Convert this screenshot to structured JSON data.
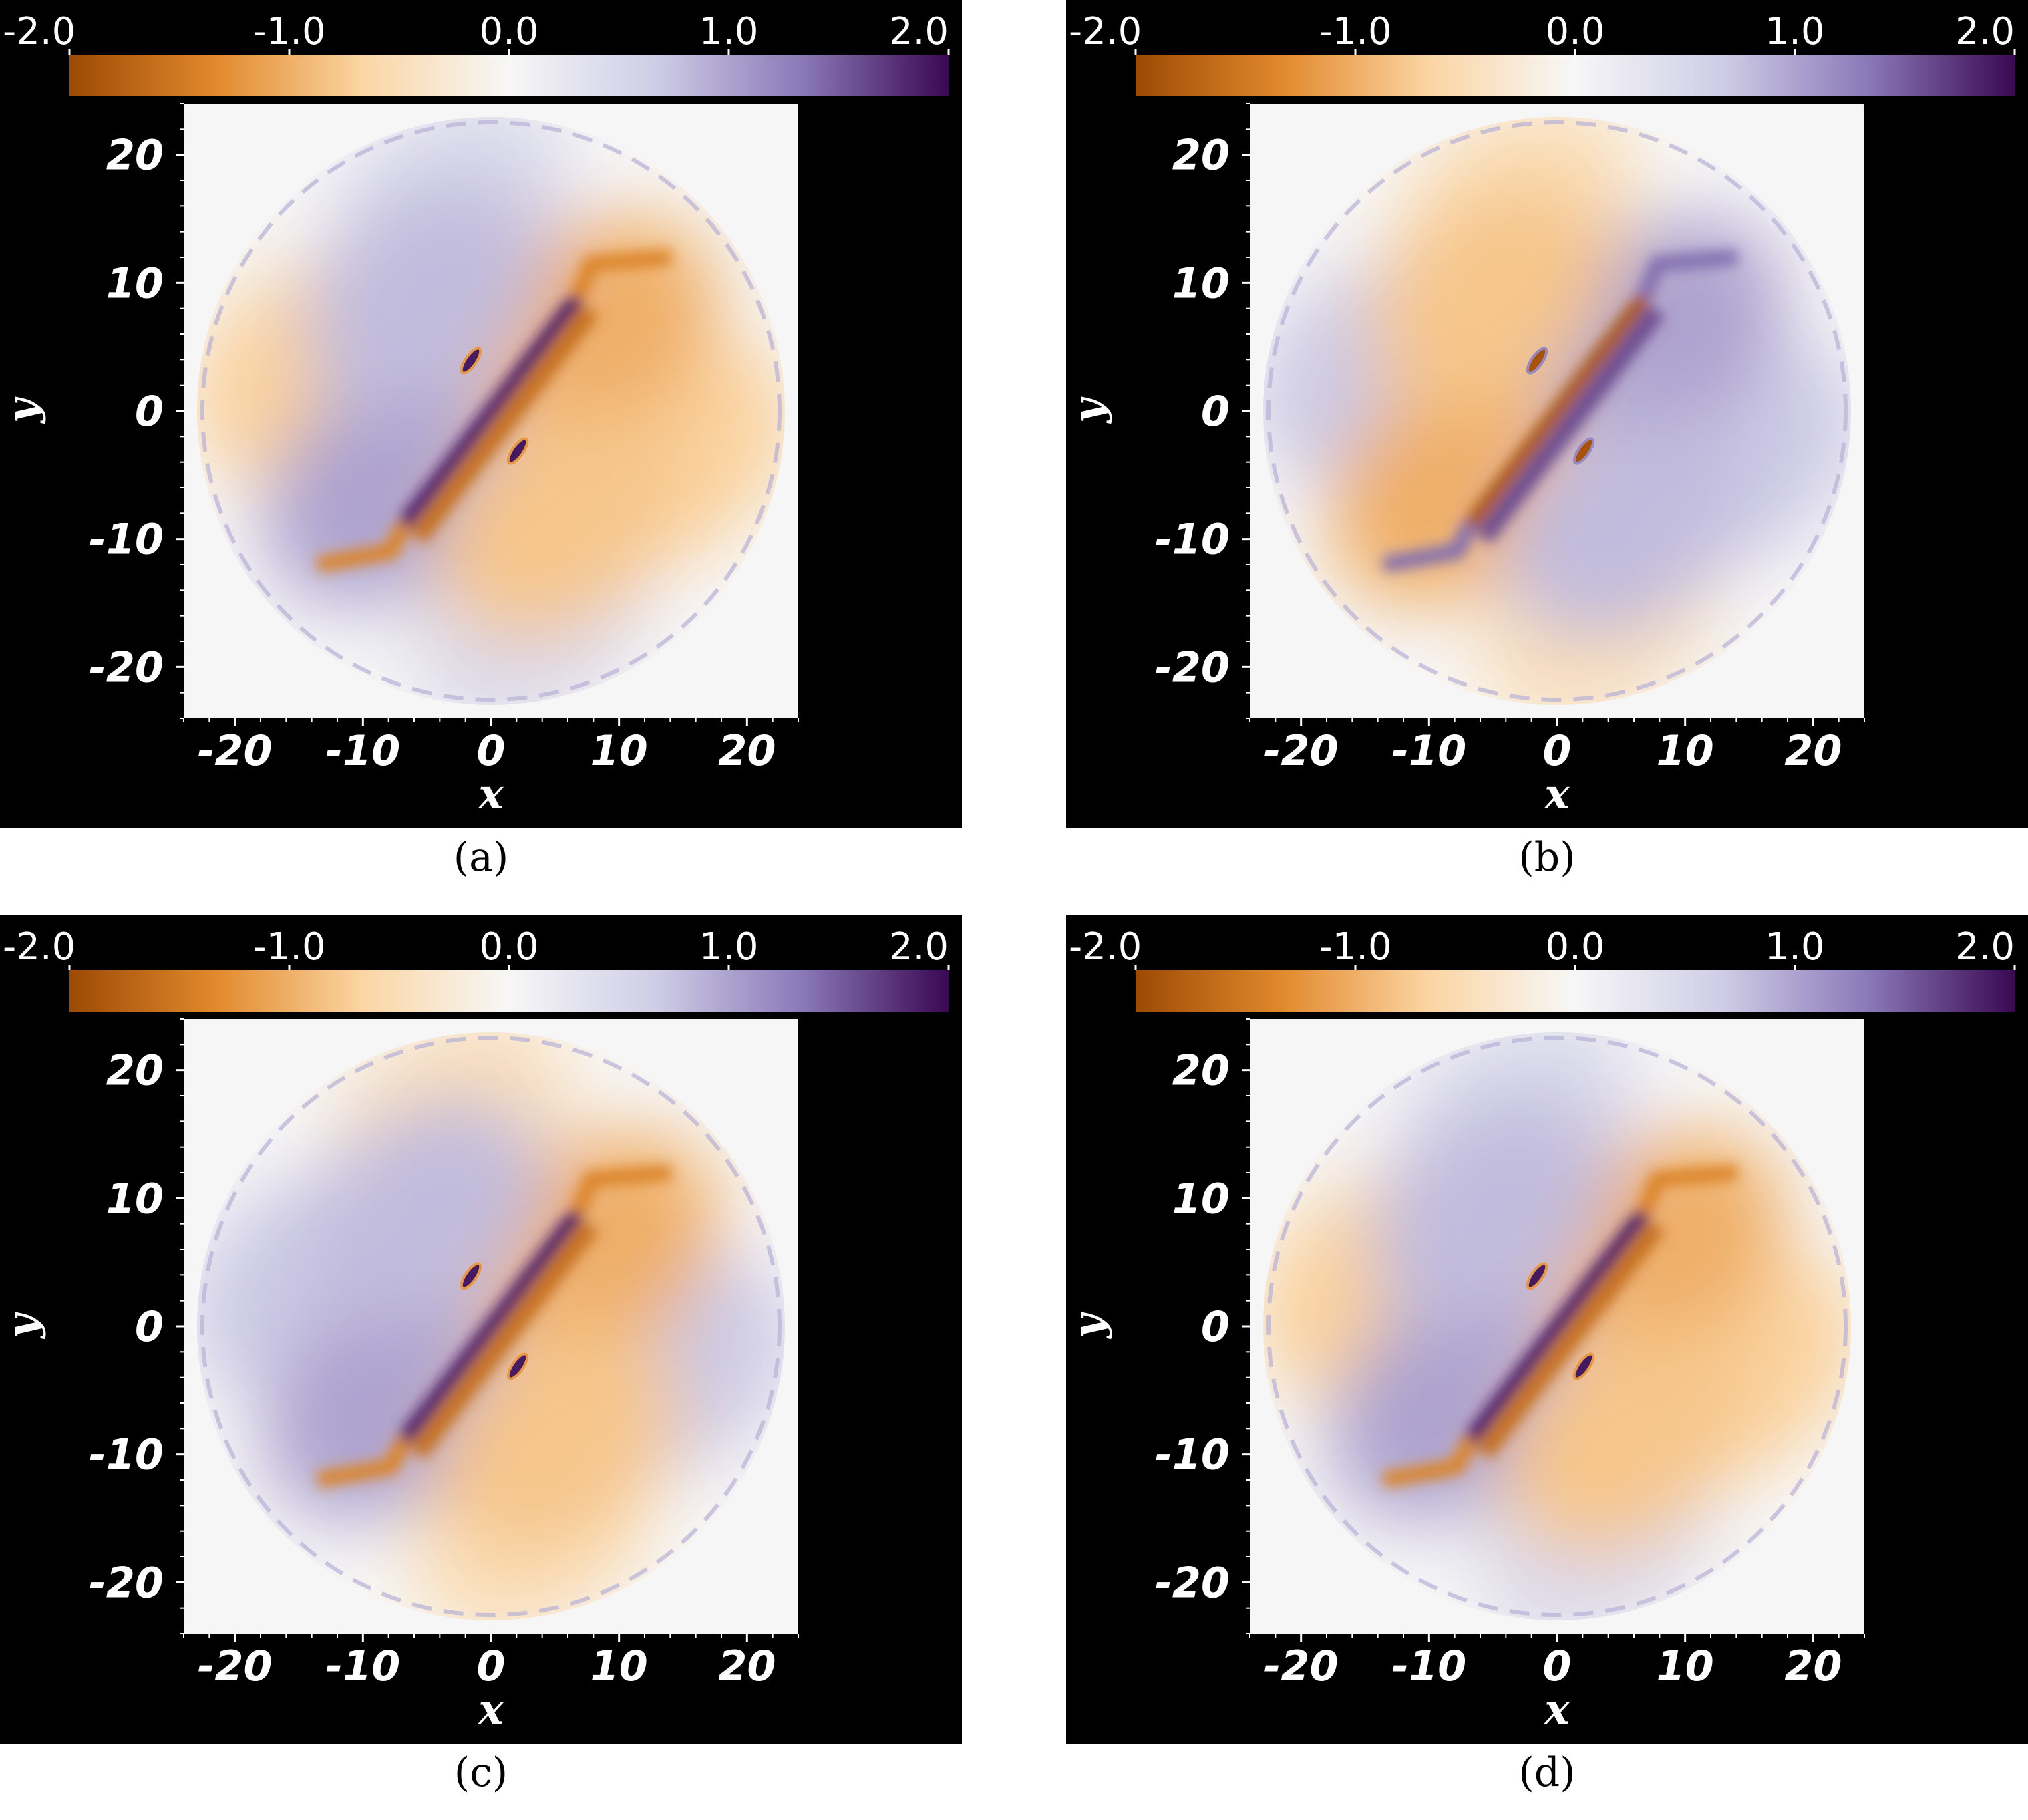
{
  "chart_data": [
    {
      "type": "heatmap",
      "panel_label": "(a)",
      "xlabel": "x",
      "ylabel": "y",
      "xlim": [
        -24,
        24
      ],
      "ylim": [
        -24,
        24
      ],
      "x_ticks": [
        "-20",
        "-10",
        "0",
        "10",
        "20"
      ],
      "y_ticks": [
        "20",
        "10",
        "0",
        "-10",
        "-20"
      ],
      "colorbar": {
        "range": [
          -2.0,
          2.0
        ],
        "ticks": [
          "-2.0",
          "-1.0",
          "0.0",
          "1.0",
          "2.0"
        ],
        "colors": [
          "#9c4a05",
          "#e2892c",
          "#fbd5a3",
          "#f7f7f7",
          "#cfcde6",
          "#8a79b8",
          "#3a0854"
        ],
        "placement": "top"
      },
      "pattern": {
        "diag_sign": 1,
        "quad_sign": -1
      }
    },
    {
      "type": "heatmap",
      "panel_label": "(b)",
      "xlabel": "x",
      "ylabel": "y",
      "xlim": [
        -24,
        24
      ],
      "ylim": [
        -24,
        24
      ],
      "x_ticks": [
        "-20",
        "-10",
        "0",
        "10",
        "20"
      ],
      "y_ticks": [
        "20",
        "10",
        "0",
        "-10",
        "-20"
      ],
      "colorbar": {
        "range": [
          -2.0,
          2.0
        ],
        "ticks": [
          "-2.0",
          "-1.0",
          "0.0",
          "1.0",
          "2.0"
        ],
        "colors": [
          "#9c4a05",
          "#e2892c",
          "#fbd5a3",
          "#f7f7f7",
          "#cfcde6",
          "#8a79b8",
          "#3a0854"
        ],
        "placement": "top"
      },
      "pattern": {
        "diag_sign": -1,
        "quad_sign": 1
      }
    },
    {
      "type": "heatmap",
      "panel_label": "(c)",
      "xlabel": "x",
      "ylabel": "y",
      "xlim": [
        -24,
        24
      ],
      "ylim": [
        -24,
        24
      ],
      "x_ticks": [
        "-20",
        "-10",
        "0",
        "10",
        "20"
      ],
      "y_ticks": [
        "20",
        "10",
        "0",
        "-10",
        "-20"
      ],
      "colorbar": {
        "range": [
          -2.0,
          2.0
        ],
        "ticks": [
          "-2.0",
          "-1.0",
          "0.0",
          "1.0",
          "2.0"
        ],
        "colors": [
          "#9c4a05",
          "#e2892c",
          "#fbd5a3",
          "#f7f7f7",
          "#cfcde6",
          "#8a79b8",
          "#3a0854"
        ],
        "placement": "top"
      },
      "pattern": {
        "diag_sign": 1,
        "quad_sign": 1
      }
    },
    {
      "type": "heatmap",
      "panel_label": "(d)",
      "xlabel": "x",
      "ylabel": "y",
      "xlim": [
        -24,
        24
      ],
      "ylim": [
        -24,
        24
      ],
      "x_ticks": [
        "-20",
        "-10",
        "0",
        "10",
        "20"
      ],
      "y_ticks": [
        "20",
        "10",
        "0",
        "-10",
        "-20"
      ],
      "colorbar": {
        "range": [
          -2.0,
          2.0
        ],
        "ticks": [
          "-2.0",
          "-1.0",
          "0.0",
          "1.0",
          "2.0"
        ],
        "colors": [
          "#9c4a05",
          "#e2892c",
          "#fbd5a3",
          "#f7f7f7",
          "#cfcde6",
          "#8a79b8",
          "#3a0854"
        ],
        "placement": "top"
      },
      "pattern": {
        "diag_sign": 1,
        "quad_sign": -1
      }
    }
  ]
}
